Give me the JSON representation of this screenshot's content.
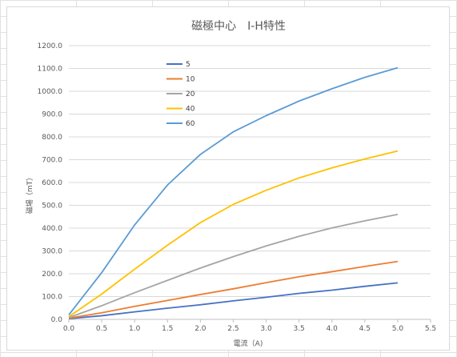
{
  "chart_data": {
    "type": "line",
    "title": "磁極中心　I-H特性",
    "xlabel": "電流（A)",
    "ylabel": "磁場（mT）",
    "xlim": [
      0,
      5.5
    ],
    "ylim": [
      0,
      1200
    ],
    "x_ticks": [
      "0.0",
      "0.5",
      "1.0",
      "1.5",
      "2.0",
      "2.5",
      "3.0",
      "3.5",
      "4.0",
      "4.5",
      "5.0",
      "5.5"
    ],
    "y_ticks": [
      "0.0",
      "100.0",
      "200.0",
      "300.0",
      "400.0",
      "500.0",
      "600.0",
      "700.0",
      "800.0",
      "900.0",
      "1000.0",
      "1100.0",
      "1200.0"
    ],
    "grid": "horizontal",
    "legend_position": "top-left",
    "x": [
      0,
      0.5,
      1.0,
      1.5,
      2.0,
      2.5,
      3.0,
      3.5,
      4.0,
      4.5,
      5.0
    ],
    "series": [
      {
        "name": "5",
        "color": "#4472c4",
        "values": [
          3,
          16,
          33,
          49,
          64,
          81,
          97,
          114,
          128,
          145,
          160
        ]
      },
      {
        "name": "10",
        "color": "#ed7d31",
        "values": [
          5,
          29,
          57,
          83,
          109,
          134,
          161,
          187,
          209,
          232,
          254
        ]
      },
      {
        "name": "20",
        "color": "#a5a5a5",
        "values": [
          8,
          60,
          117,
          171,
          225,
          275,
          322,
          364,
          401,
          432,
          460
        ]
      },
      {
        "name": "40",
        "color": "#ffc000",
        "values": [
          12,
          111,
          220,
          325,
          424,
          504,
          566,
          620,
          664,
          703,
          738
        ]
      },
      {
        "name": "60",
        "color": "#5b9bd5",
        "values": [
          20,
          205,
          414,
          589,
          723,
          822,
          893,
          957,
          1011,
          1061,
          1103
        ]
      }
    ]
  }
}
